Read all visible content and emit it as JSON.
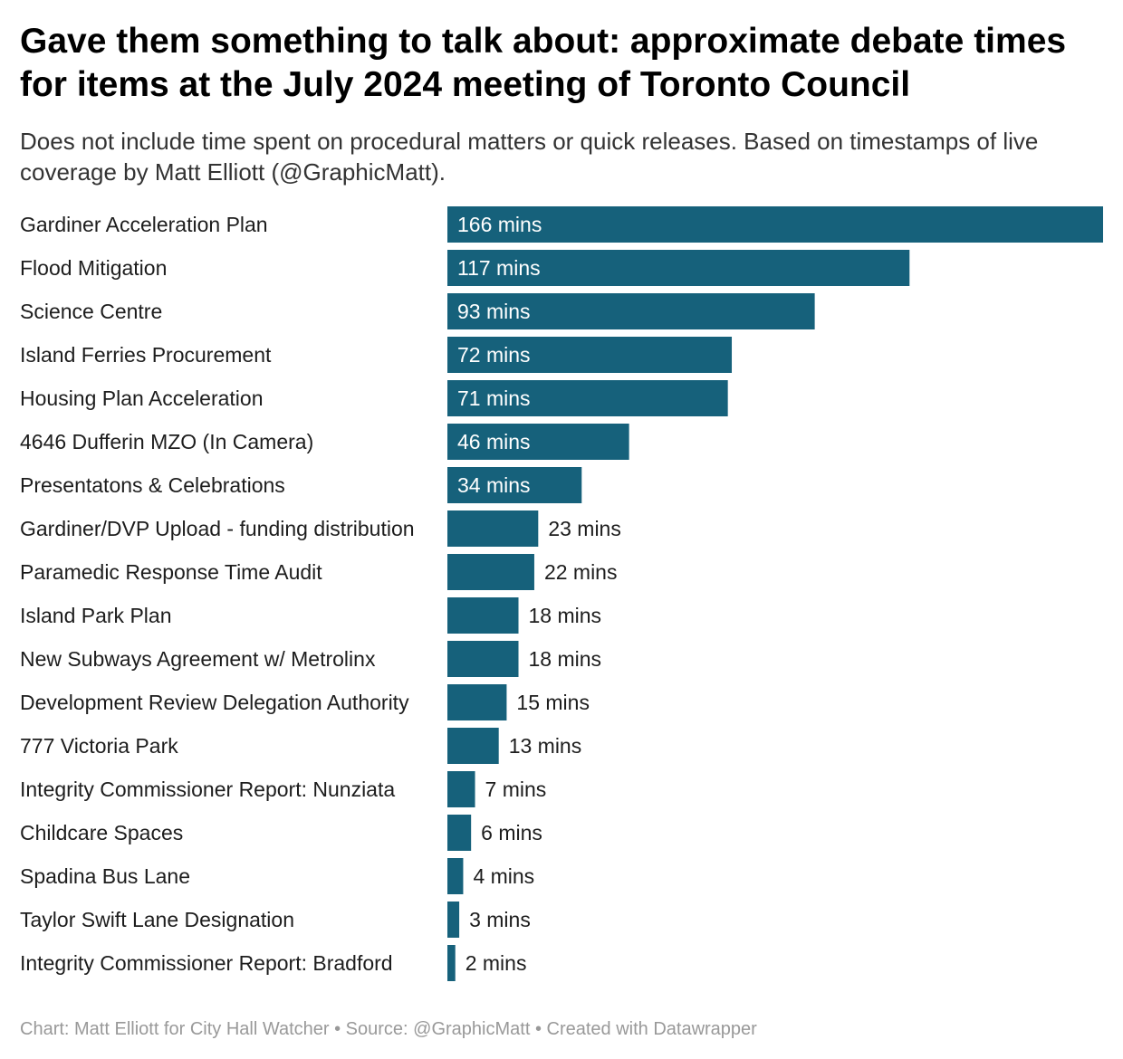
{
  "title": "Gave them something to talk about: approximate debate times for items at the July 2024 meeting of Toronto Council",
  "subtitle": "Does not include time spent on procedural matters or quick releases. Based on timestamps of live coverage by Matt Elliott (@GraphicMatt).",
  "footer": "Chart: Matt Elliott for City Hall Watcher • Source: @GraphicMatt • Created with Datawrapper",
  "colors": {
    "bar": "#16617b"
  },
  "chart_data": {
    "type": "bar",
    "orientation": "horizontal",
    "title": "Gave them something to talk about: approximate debate times for items at the July 2024 meeting of Toronto Council",
    "subtitle": "Does not include time spent on procedural matters or quick releases. Based on timestamps of live coverage by Matt Elliott (@GraphicMatt).",
    "value_suffix": " mins",
    "categories": [
      "Gardiner Acceleration Plan",
      "Flood Mitigation",
      "Science Centre",
      "Island Ferries Procurement",
      "Housing Plan Acceleration",
      "4646 Dufferin MZO (In Camera)",
      "Presentatons & Celebrations",
      "Gardiner/DVP Upload - funding distribution",
      "Paramedic Response Time Audit",
      "Island Park Plan",
      "New Subways Agreement w/ Metrolinx",
      "Development Review Delegation Authority",
      "777 Victoria Park",
      "Integrity Commissioner Report: Nunziata",
      "Childcare Spaces",
      "Spadina Bus Lane",
      "Taylor Swift Lane Designation",
      "Integrity Commissioner Report: Bradford"
    ],
    "values": [
      166,
      117,
      93,
      72,
      71,
      46,
      34,
      23,
      22,
      18,
      18,
      15,
      13,
      7,
      6,
      4,
      3,
      2
    ],
    "xlim": [
      0,
      166
    ],
    "grid": false,
    "legend": "none"
  }
}
